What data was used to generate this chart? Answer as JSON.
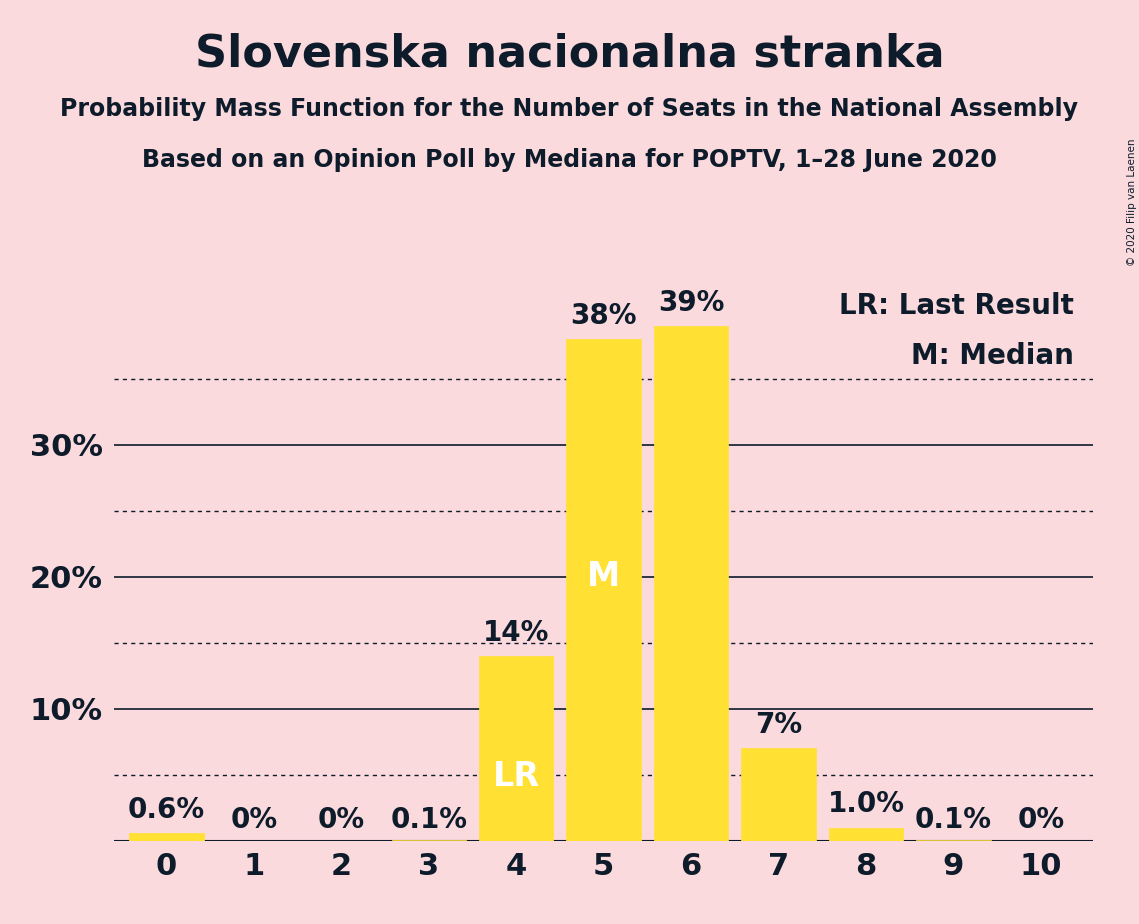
{
  "title": "Slovenska nacionalna stranka",
  "subtitle1": "Probability Mass Function for the Number of Seats in the National Assembly",
  "subtitle2": "Based on an Opinion Poll by Mediana for POPTV, 1–28 June 2020",
  "copyright": "© 2020 Filip van Laenen",
  "x_values": [
    0,
    1,
    2,
    3,
    4,
    5,
    6,
    7,
    8,
    9,
    10
  ],
  "y_values": [
    0.6,
    0.0,
    0.0,
    0.1,
    14.0,
    38.0,
    39.0,
    7.0,
    1.0,
    0.1,
    0.0
  ],
  "bar_color": "#FFE033",
  "background_color": "#FADADD",
  "bar_labels": [
    "0.6%",
    "0%",
    "0%",
    "0.1%",
    "14%",
    "38%",
    "39%",
    "7%",
    "1.0%",
    "0.1%",
    "0%"
  ],
  "lr_bar": 4,
  "median_bar": 5,
  "lr_label": "LR",
  "median_label": "M",
  "legend_lr": "LR: Last Result",
  "legend_m": "M: Median",
  "solid_gridlines": [
    0,
    10,
    20,
    30
  ],
  "dotted_gridlines": [
    5,
    15,
    25,
    35
  ],
  "ymax": 42,
  "title_fontsize": 32,
  "subtitle_fontsize": 17,
  "axis_fontsize": 22,
  "bar_label_fontsize": 20,
  "lr_m_label_fontsize": 24,
  "legend_fontsize": 20,
  "text_color": "#0d1b2a",
  "bar_edge_color": "#FFE033"
}
